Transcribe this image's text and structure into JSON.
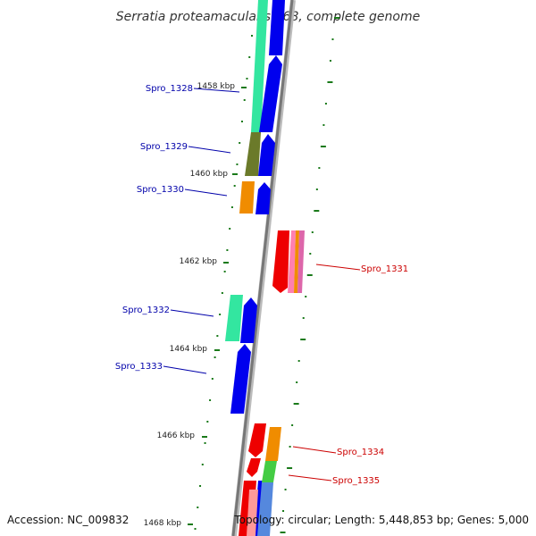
{
  "title": "Serratia proteamaculans 568, complete genome",
  "footer": {
    "accession": "Accession: NC_009832",
    "summary": "Topology: circular; Length: 5,448,853 bp; Genes: 5,000"
  },
  "kbp_ticks": [
    {
      "label": "1458 kbp"
    },
    {
      "label": "1460 kbp"
    },
    {
      "label": "1462 kbp"
    },
    {
      "label": "1464 kbp"
    },
    {
      "label": "1466 kbp"
    },
    {
      "label": "1468 kbp"
    }
  ],
  "genes": [
    {
      "name": "Spro_1328",
      "strand": "forward",
      "color": "#0000cc"
    },
    {
      "name": "Spro_1329",
      "strand": "forward",
      "color": "#0000cc"
    },
    {
      "name": "Spro_1330",
      "strand": "forward",
      "color": "#0000cc"
    },
    {
      "name": "Spro_1331",
      "strand": "reverse",
      "color": "#cc0000"
    },
    {
      "name": "Spro_1332",
      "strand": "forward",
      "color": "#0000cc"
    },
    {
      "name": "Spro_1333",
      "strand": "forward",
      "color": "#0000cc"
    },
    {
      "name": "Spro_1334",
      "strand": "reverse",
      "color": "#cc0000"
    },
    {
      "name": "Spro_1335",
      "strand": "reverse",
      "color": "#cc0000"
    }
  ],
  "colors": {
    "forward_gene": "#0000ee",
    "reverse_gene": "#ee0000",
    "backbone": "#888888",
    "tick": "#1a7a1a",
    "cog_teal": "#33e6a0",
    "cog_olive": "#6b7a2a",
    "cog_orange": "#f08c00",
    "cog_green": "#44cc44",
    "cog_pink": "#ff66aa",
    "cog_magenta": "#dd2288"
  }
}
